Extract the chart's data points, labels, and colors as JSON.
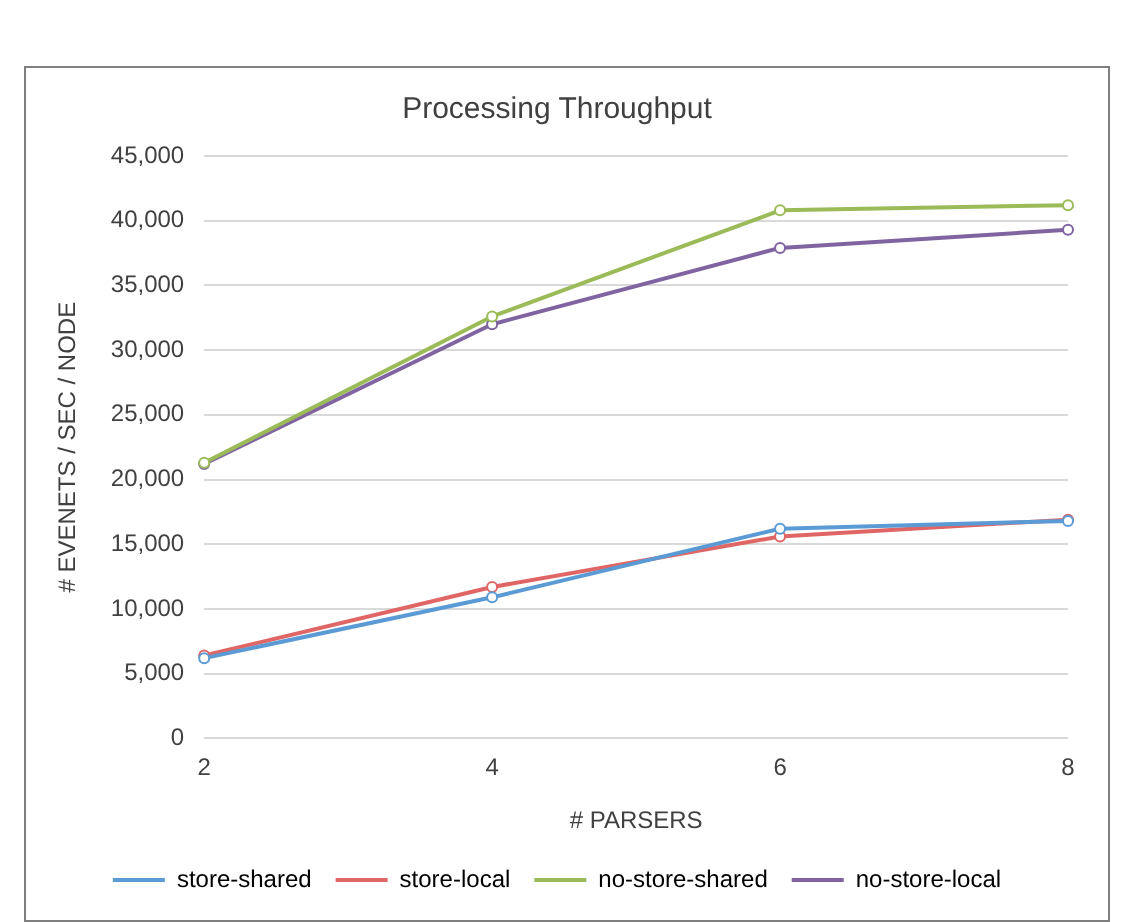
{
  "chart_data": {
    "type": "line",
    "title": "Processing Throughput",
    "xlabel": "# PARSERS",
    "ylabel": "# EVENETS / SEC / NODE",
    "categories": [
      "2",
      "4",
      "6",
      "8"
    ],
    "series": [
      {
        "name": "store-shared",
        "color": "#5b9bd5",
        "values": [
          6200,
          10900,
          16200,
          16800
        ]
      },
      {
        "name": "store-local",
        "color": "#e06666",
        "values": [
          6400,
          11700,
          15600,
          16900
        ]
      },
      {
        "name": "no-store-shared",
        "color": "#9bbb59",
        "values": [
          21300,
          32600,
          40800,
          41200
        ]
      },
      {
        "name": "no-store-local",
        "color": "#8064a2",
        "values": [
          21200,
          32000,
          37900,
          39300
        ]
      }
    ],
    "ylim": [
      0,
      45000
    ],
    "yticks": [
      {
        "value": 0,
        "label": "0"
      },
      {
        "value": 5000,
        "label": "5,000"
      },
      {
        "value": 10000,
        "label": "10,000"
      },
      {
        "value": 15000,
        "label": "15,000"
      },
      {
        "value": 20000,
        "label": "20,000"
      },
      {
        "value": 25000,
        "label": "25,000"
      },
      {
        "value": 30000,
        "label": "30,000"
      },
      {
        "value": 35000,
        "label": "35,000"
      },
      {
        "value": 40000,
        "label": "40,000"
      },
      {
        "value": 45000,
        "label": "45,000"
      }
    ],
    "grid": "y",
    "legend": "bottom",
    "marker": "circle",
    "line_style": "solid"
  }
}
